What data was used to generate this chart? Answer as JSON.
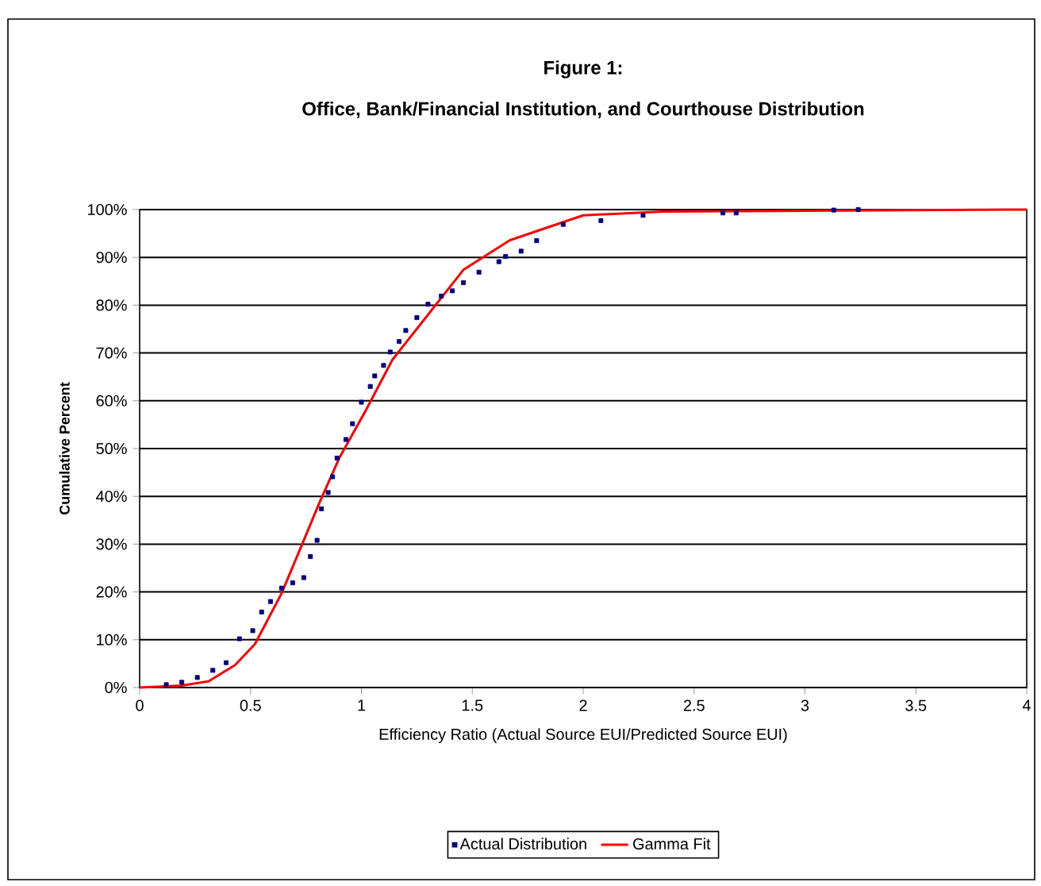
{
  "chart_data": {
    "type": "scatter",
    "title": "Figure 1:",
    "subtitle": "Office, Bank/Financial Institution, and Courthouse Distribution",
    "xlabel": "Efficiency Ratio (Actual Source EUI/Predicted Source EUI)",
    "ylabel": "Cumulative Percent",
    "xlim": [
      0,
      4
    ],
    "xticks": [
      0,
      0.5,
      1,
      1.5,
      2,
      2.5,
      3,
      3.5,
      4
    ],
    "ylim": [
      0,
      100
    ],
    "yticks": [
      {
        "value": 0,
        "label": "0%"
      },
      {
        "value": 10,
        "label": "10%"
      },
      {
        "value": 20,
        "label": "20%"
      },
      {
        "value": 30,
        "label": "30%"
      },
      {
        "value": 40,
        "label": "40%"
      },
      {
        "value": 50,
        "label": "50%"
      },
      {
        "value": 60,
        "label": "60%"
      },
      {
        "value": 70,
        "label": "70%"
      },
      {
        "value": 80,
        "label": "80%"
      },
      {
        "value": 90,
        "label": "90%"
      },
      {
        "value": 100,
        "label": "100%"
      }
    ],
    "grid": "y",
    "legend": "bottom",
    "series": [
      {
        "name": "Actual Distribution",
        "marker": "square",
        "color": "#000080",
        "x": [
          0.12,
          0.19,
          0.26,
          0.33,
          0.39,
          0.45,
          0.51,
          0.55,
          0.59,
          0.64,
          0.69,
          0.74,
          0.77,
          0.8,
          0.82,
          0.85,
          0.87,
          0.89,
          0.93,
          0.96,
          1.0,
          1.04,
          1.06,
          1.1,
          1.13,
          1.17,
          1.2,
          1.25,
          1.3,
          1.36,
          1.41,
          1.46,
          1.53,
          1.62,
          1.65,
          1.72,
          1.79,
          1.91,
          2.08,
          2.27,
          2.63,
          2.69,
          3.13,
          3.24
        ],
        "values": [
          0.6,
          1.1,
          2.1,
          3.6,
          5.2,
          10.2,
          11.9,
          15.8,
          18,
          20.8,
          21.9,
          23,
          27.4,
          30.8,
          37.4,
          40.8,
          44.1,
          48,
          51.9,
          55.2,
          59.7,
          63,
          65.2,
          67.4,
          70.2,
          72.4,
          74.7,
          77.4,
          80.2,
          81.9,
          83,
          84.7,
          86.9,
          89.1,
          90.2,
          91.3,
          93.5,
          96.9,
          97.7,
          98.8,
          99.3,
          99.3,
          99.9,
          100
        ]
      },
      {
        "name": "Gamma Fit",
        "type": "line",
        "color": "#ff0000",
        "x": [
          0,
          0.19,
          0.31,
          0.43,
          0.52,
          0.64,
          0.74,
          0.81,
          0.9,
          1.02,
          1.14,
          1.29,
          1.46,
          1.67,
          2.0,
          2.36,
          4.0
        ],
        "values": [
          0,
          0.4,
          1.3,
          4.7,
          9.1,
          19.7,
          30.8,
          38.6,
          48,
          58,
          68.6,
          77.4,
          87.4,
          93.6,
          98.8,
          99.6,
          100
        ]
      }
    ]
  }
}
